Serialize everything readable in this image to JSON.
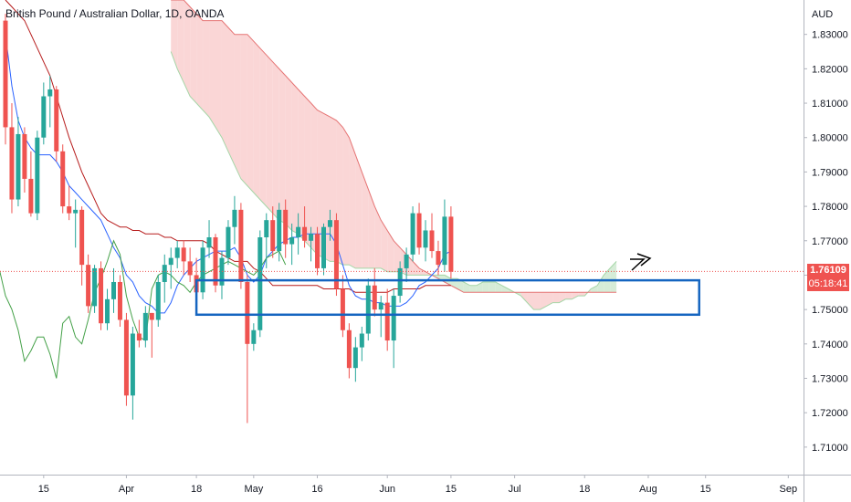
{
  "title": "British Pound / Australian Dollar, 1D, OANDA",
  "currency_label": "AUD",
  "current_price": "1.76109",
  "countdown": "05:18:41",
  "colors": {
    "up": "#26a69a",
    "down": "#ef5350",
    "conversion": "#2962ff",
    "base": "#b71c1c",
    "lagging": "#43a047",
    "cloud_bear": "#f8c8c8",
    "cloud_bull": "#c8e6c9",
    "box": "#1565c0",
    "axis_text": "#131722"
  },
  "chart_data": {
    "type": "candlestick",
    "title": "British Pound / Australian Dollar, 1D, OANDA",
    "y_ticks": [
      "1.83000",
      "1.82000",
      "1.81000",
      "1.80000",
      "1.79000",
      "1.78000",
      "1.77000",
      "1.76000",
      "1.75000",
      "1.74000",
      "1.73000",
      "1.72000",
      "1.71000"
    ],
    "ylim": [
      1.702,
      1.84
    ],
    "x_ticks": [
      {
        "label": "15",
        "index": 6
      },
      {
        "label": "Apr",
        "index": 19
      },
      {
        "label": "18",
        "index": 30
      },
      {
        "label": "May",
        "index": 39
      },
      {
        "label": "16",
        "index": 49
      },
      {
        "label": "Jun",
        "index": 60
      },
      {
        "label": "15",
        "index": 70
      },
      {
        "label": "Jul",
        "index": 80
      },
      {
        "label": "18",
        "index": 91
      },
      {
        "label": "Aug",
        "index": 101
      },
      {
        "label": "15",
        "index": 110
      },
      {
        "label": "Sep",
        "index": 123
      }
    ],
    "candles": [
      [
        1.834,
        1.836,
        1.798,
        1.803
      ],
      [
        1.803,
        1.81,
        1.778,
        1.782
      ],
      [
        1.782,
        1.806,
        1.78,
        1.801
      ],
      [
        1.801,
        1.803,
        1.784,
        1.788
      ],
      [
        1.788,
        1.796,
        1.777,
        1.778
      ],
      [
        1.778,
        1.802,
        1.776,
        1.8
      ],
      [
        1.8,
        1.816,
        1.798,
        1.812
      ],
      [
        1.812,
        1.818,
        1.803,
        1.814
      ],
      [
        1.814,
        1.815,
        1.793,
        1.796
      ],
      [
        1.796,
        1.798,
        1.778,
        1.78
      ],
      [
        1.78,
        1.786,
        1.776,
        1.778
      ],
      [
        1.778,
        1.782,
        1.768,
        1.779
      ],
      [
        1.779,
        1.78,
        1.757,
        1.763
      ],
      [
        1.763,
        1.766,
        1.749,
        1.751
      ],
      [
        1.751,
        1.763,
        1.749,
        1.762
      ],
      [
        1.762,
        1.764,
        1.744,
        1.746
      ],
      [
        1.746,
        1.756,
        1.744,
        1.753
      ],
      [
        1.753,
        1.762,
        1.749,
        1.758
      ],
      [
        1.758,
        1.76,
        1.745,
        1.747
      ],
      [
        1.747,
        1.749,
        1.722,
        1.725
      ],
      [
        1.725,
        1.745,
        1.718,
        1.743
      ],
      [
        1.743,
        1.747,
        1.739,
        1.741
      ],
      [
        1.741,
        1.751,
        1.739,
        1.749
      ],
      [
        1.749,
        1.749,
        1.736,
        1.747
      ],
      [
        1.747,
        1.76,
        1.745,
        1.758
      ],
      [
        1.758,
        1.766,
        1.752,
        1.763
      ],
      [
        1.763,
        1.768,
        1.756,
        1.765
      ],
      [
        1.765,
        1.77,
        1.762,
        1.768
      ],
      [
        1.768,
        1.77,
        1.76,
        1.764
      ],
      [
        1.764,
        1.768,
        1.758,
        1.76
      ],
      [
        1.76,
        1.765,
        1.753,
        1.755
      ],
      [
        1.755,
        1.77,
        1.753,
        1.768
      ],
      [
        1.768,
        1.776,
        1.765,
        1.771
      ],
      [
        1.771,
        1.772,
        1.755,
        1.757
      ],
      [
        1.757,
        1.767,
        1.753,
        1.765
      ],
      [
        1.765,
        1.776,
        1.763,
        1.774
      ],
      [
        1.774,
        1.783,
        1.769,
        1.779
      ],
      [
        1.779,
        1.781,
        1.756,
        1.758
      ],
      [
        1.758,
        1.76,
        1.717,
        1.74
      ],
      [
        1.74,
        1.746,
        1.738,
        1.744
      ],
      [
        1.744,
        1.773,
        1.742,
        1.771
      ],
      [
        1.771,
        1.778,
        1.762,
        1.776
      ],
      [
        1.776,
        1.78,
        1.765,
        1.767
      ],
      [
        1.767,
        1.781,
        1.764,
        1.779
      ],
      [
        1.779,
        1.782,
        1.765,
        1.769
      ],
      [
        1.769,
        1.775,
        1.763,
        1.771
      ],
      [
        1.771,
        1.778,
        1.766,
        1.774
      ],
      [
        1.774,
        1.78,
        1.768,
        1.77
      ],
      [
        1.77,
        1.774,
        1.764,
        1.772
      ],
      [
        1.772,
        1.774,
        1.76,
        1.762
      ],
      [
        1.762,
        1.775,
        1.76,
        1.774
      ],
      [
        1.774,
        1.779,
        1.77,
        1.776
      ],
      [
        1.776,
        1.778,
        1.754,
        1.756
      ],
      [
        1.756,
        1.76,
        1.742,
        1.744
      ],
      [
        1.744,
        1.746,
        1.73,
        1.733
      ],
      [
        1.733,
        1.742,
        1.729,
        1.739
      ],
      [
        1.739,
        1.745,
        1.735,
        1.743
      ],
      [
        1.743,
        1.759,
        1.741,
        1.757
      ],
      [
        1.757,
        1.762,
        1.748,
        1.75
      ],
      [
        1.75,
        1.754,
        1.742,
        1.752
      ],
      [
        1.752,
        1.756,
        1.738,
        1.741
      ],
      [
        1.741,
        1.756,
        1.733,
        1.754
      ],
      [
        1.754,
        1.764,
        1.752,
        1.762
      ],
      [
        1.762,
        1.768,
        1.758,
        1.766
      ],
      [
        1.766,
        1.78,
        1.764,
        1.778
      ],
      [
        1.778,
        1.781,
        1.766,
        1.768
      ],
      [
        1.768,
        1.776,
        1.764,
        1.773
      ],
      [
        1.773,
        1.778,
        1.765,
        1.767
      ],
      [
        1.767,
        1.77,
        1.76,
        1.763
      ],
      [
        1.763,
        1.782,
        1.761,
        1.777
      ],
      [
        1.777,
        1.78,
        1.759,
        1.761
      ]
    ],
    "candle_x_offset": 0,
    "conversion_line": [
      1.83,
      1.815,
      1.805,
      1.8,
      1.797,
      1.795,
      1.795,
      1.795,
      1.793,
      1.79,
      1.786,
      1.784,
      1.782,
      1.78,
      1.778,
      1.776,
      1.772,
      1.768,
      1.765,
      1.76,
      1.758,
      1.754,
      1.752,
      1.751,
      1.749,
      1.749,
      1.752,
      1.757,
      1.76,
      1.762,
      1.764,
      1.765,
      1.766,
      1.767,
      1.767,
      1.767,
      1.768,
      1.765,
      1.76,
      1.758,
      1.76,
      1.765,
      1.767,
      1.769,
      1.77,
      1.771,
      1.771,
      1.772,
      1.772,
      1.772,
      1.772,
      1.772,
      1.769,
      1.763,
      1.757,
      1.754,
      1.753,
      1.753,
      1.752,
      1.752,
      1.751,
      1.751,
      1.751,
      1.752,
      1.754,
      1.757,
      1.758,
      1.76,
      1.762,
      1.766,
      1.767
    ],
    "base_line": [
      1.84,
      1.838,
      1.836,
      1.834,
      1.83,
      1.826,
      1.822,
      1.818,
      1.812,
      1.806,
      1.8,
      1.795,
      1.79,
      1.786,
      1.782,
      1.778,
      1.776,
      1.775,
      1.774,
      1.774,
      1.773,
      1.773,
      1.772,
      1.772,
      1.772,
      1.771,
      1.771,
      1.77,
      1.77,
      1.77,
      1.77,
      1.77,
      1.769,
      1.767,
      1.766,
      1.765,
      1.764,
      1.764,
      1.764,
      1.762,
      1.761,
      1.759,
      1.757,
      1.757,
      1.757,
      1.757,
      1.757,
      1.757,
      1.757,
      1.757,
      1.756,
      1.756,
      1.756,
      1.756,
      1.756,
      1.755,
      1.755,
      1.755,
      1.755,
      1.755,
      1.755,
      1.756,
      1.756,
      1.756,
      1.756,
      1.756,
      1.757,
      1.757,
      1.757,
      1.757,
      1.757
    ],
    "lagging_span_offset": -26,
    "lagging_span": [
      1.758,
      1.762,
      1.759,
      1.762,
      1.765,
      1.768,
      1.764,
      1.76,
      1.757,
      1.764,
      1.769,
      1.772,
      1.77,
      1.771,
      1.765,
      1.77,
      1.773,
      1.775,
      1.772,
      1.767,
      1.762,
      1.754,
      1.76,
      1.762,
      1.758,
      1.762,
      1.754,
      1.75,
      1.744,
      1.735,
      1.738,
      1.742,
      1.742,
      1.737,
      1.73,
      1.746,
      1.748,
      1.742,
      1.74,
      1.747,
      1.755,
      1.759,
      1.764,
      1.77,
      1.766,
      1.754,
      1.747,
      1.742,
      1.741,
      1.756,
      1.76,
      1.761,
      1.76,
      1.758,
      1.757,
      1.755,
      1.758,
      1.76,
      1.761,
      1.762,
      1.763,
      1.764,
      1.763,
      1.762,
      1.761,
      1.76,
      1.762,
      1.765,
      1.766,
      1.767,
      1.763
    ],
    "cloud_offset": 26,
    "span_a": [
      1.825,
      1.82,
      1.816,
      1.812,
      1.81,
      1.808,
      1.806,
      1.803,
      1.8,
      1.796,
      1.792,
      1.788,
      1.786,
      1.784,
      1.782,
      1.78,
      1.778,
      1.776,
      1.775,
      1.773,
      1.772,
      1.77,
      1.768,
      1.766,
      1.765,
      1.764,
      1.764,
      1.763,
      1.763,
      1.762,
      1.762,
      1.762,
      1.762,
      1.762,
      1.761,
      1.761,
      1.761,
      1.76,
      1.76,
      1.76,
      1.76,
      1.76,
      1.76,
      1.76,
      1.759,
      1.759,
      1.758,
      1.757,
      1.757,
      1.758,
      1.758,
      1.758,
      1.757,
      1.756,
      1.755,
      1.754,
      1.752,
      1.75,
      1.75,
      1.751,
      1.752,
      1.752,
      1.753,
      1.753,
      1.754,
      1.754,
      1.756,
      1.757,
      1.76,
      1.762,
      1.764
    ],
    "span_b": [
      1.84,
      1.84,
      1.84,
      1.838,
      1.836,
      1.834,
      1.834,
      1.834,
      1.834,
      1.832,
      1.83,
      1.83,
      1.83,
      1.828,
      1.826,
      1.824,
      1.822,
      1.82,
      1.818,
      1.816,
      1.814,
      1.812,
      1.81,
      1.808,
      1.807,
      1.806,
      1.805,
      1.803,
      1.8,
      1.795,
      1.79,
      1.785,
      1.78,
      1.776,
      1.773,
      1.77,
      1.768,
      1.766,
      1.764,
      1.762,
      1.761,
      1.76,
      1.759,
      1.758,
      1.757,
      1.756,
      1.755,
      1.755,
      1.755,
      1.755,
      1.755,
      1.755,
      1.755,
      1.755,
      1.755,
      1.755,
      1.755,
      1.755,
      1.755,
      1.755,
      1.755,
      1.755,
      1.755,
      1.755,
      1.755,
      1.755,
      1.755,
      1.755,
      1.755,
      1.755,
      1.755
    ],
    "rectangle": {
      "start_index": 30,
      "end_index": 109,
      "top": 1.7585,
      "bottom": 1.7485
    },
    "price_line": 1.76109
  }
}
